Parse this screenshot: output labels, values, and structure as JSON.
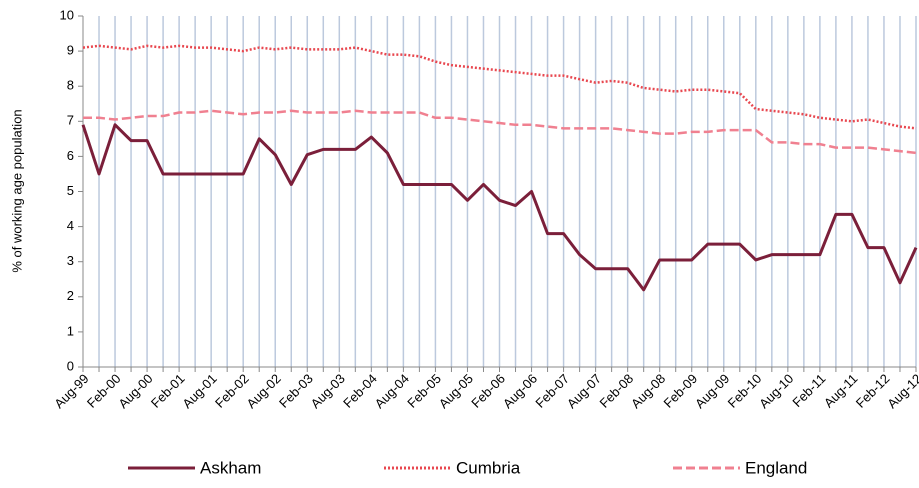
{
  "chart_data": {
    "type": "line",
    "y_label": "% of working age population",
    "categories": [
      "Aug-99",
      null,
      "Feb-00",
      null,
      "Aug-00",
      null,
      "Feb-01",
      null,
      "Aug-01",
      null,
      "Feb-02",
      null,
      "Aug-02",
      null,
      "Feb-03",
      null,
      "Aug-03",
      null,
      "Feb-04",
      null,
      "Aug-04",
      null,
      "Feb-05",
      null,
      "Aug-05",
      null,
      "Feb-06",
      null,
      "Aug-06",
      null,
      "Feb-07",
      null,
      "Aug-07",
      null,
      "Feb-08",
      null,
      "Aug-08",
      null,
      "Feb-09",
      null,
      "Aug-09",
      null,
      "Feb-10",
      null,
      "Aug-10",
      null,
      "Feb-11",
      null,
      "Aug-11",
      null,
      "Feb-12",
      null,
      "Aug-12"
    ],
    "series": [
      {
        "name": "Askham",
        "color": "#7b1f3a",
        "style": "solid",
        "values": [
          6.9,
          5.5,
          6.9,
          6.45,
          6.45,
          5.5,
          5.5,
          5.5,
          5.5,
          5.5,
          5.5,
          6.5,
          6.05,
          5.2,
          6.05,
          6.2,
          6.2,
          6.2,
          6.55,
          6.1,
          5.2,
          5.2,
          5.2,
          5.2,
          4.75,
          5.2,
          4.75,
          4.6,
          5.0,
          3.8,
          3.8,
          3.2,
          2.8,
          2.8,
          2.8,
          2.2,
          3.05,
          3.05,
          3.05,
          3.5,
          3.5,
          3.5,
          3.05,
          3.2,
          3.2,
          3.2,
          3.2,
          4.35,
          4.35,
          3.4,
          3.4,
          2.4,
          3.4
        ]
      },
      {
        "name": "Cumbria",
        "color": "#e8474f",
        "style": "dotted",
        "values": [
          9.1,
          9.15,
          9.1,
          9.05,
          9.15,
          9.1,
          9.15,
          9.1,
          9.1,
          9.05,
          9.0,
          9.1,
          9.05,
          9.1,
          9.05,
          9.05,
          9.05,
          9.1,
          9.0,
          8.9,
          8.9,
          8.85,
          8.7,
          8.6,
          8.55,
          8.5,
          8.45,
          8.4,
          8.35,
          8.3,
          8.3,
          8.2,
          8.1,
          8.15,
          8.1,
          7.95,
          7.9,
          7.85,
          7.9,
          7.9,
          7.85,
          7.8,
          7.35,
          7.3,
          7.25,
          7.2,
          7.1,
          7.05,
          7.0,
          7.05,
          6.95,
          6.85,
          6.8
        ]
      },
      {
        "name": "England",
        "color": "#f08090",
        "style": "dashed",
        "values": [
          7.1,
          7.1,
          7.05,
          7.1,
          7.15,
          7.15,
          7.25,
          7.25,
          7.3,
          7.25,
          7.2,
          7.25,
          7.25,
          7.3,
          7.25,
          7.25,
          7.25,
          7.3,
          7.25,
          7.25,
          7.25,
          7.25,
          7.1,
          7.1,
          7.05,
          7.0,
          6.95,
          6.9,
          6.9,
          6.85,
          6.8,
          6.8,
          6.8,
          6.8,
          6.75,
          6.7,
          6.65,
          6.65,
          6.7,
          6.7,
          6.75,
          6.75,
          6.75,
          6.4,
          6.4,
          6.35,
          6.35,
          6.25,
          6.25,
          6.25,
          6.2,
          6.15,
          6.1
        ]
      }
    ],
    "ylim": [
      0,
      10
    ],
    "yticks": [
      0,
      1,
      2,
      3,
      4,
      5,
      6,
      7,
      8,
      9,
      10
    ],
    "grid": "x",
    "legend": "bottom"
  }
}
